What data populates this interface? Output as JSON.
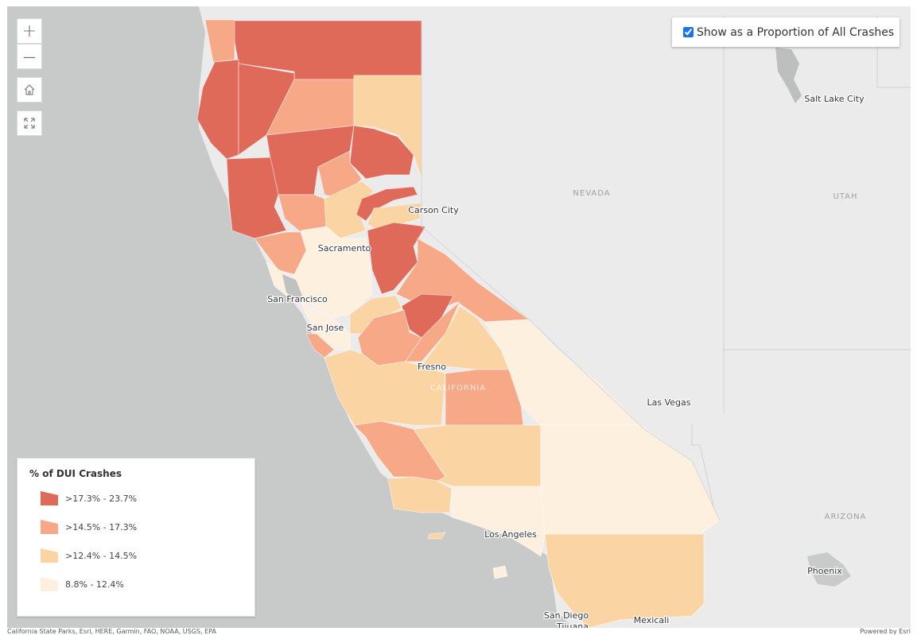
{
  "controls": {
    "zoom_in": "+",
    "zoom_out": "—",
    "home_icon": "home-icon",
    "fullscreen_icon": "fullscreen-icon"
  },
  "toggle": {
    "label": "Show as a Proportion of All Crashes",
    "checked": true
  },
  "legend": {
    "title": "% of DUI Crashes",
    "items": [
      {
        "label": ">17.3% - 23.7%",
        "color": "#e06a5a"
      },
      {
        "label": ">14.5% - 17.3%",
        "color": "#f7a886"
      },
      {
        "label": ">12.4% - 14.5%",
        "color": "#fbd4a4"
      },
      {
        "label": "8.8% - 12.4%",
        "color": "#fdf0de"
      }
    ]
  },
  "map_labels": {
    "cities": [
      "Salt Lake City",
      "Carson City",
      "Sacramento",
      "San Francisco",
      "San Jose",
      "Fresno",
      "Las Vegas",
      "Los Angeles",
      "Phoenix",
      "San Diego",
      "Tijuana",
      "Mexicali"
    ],
    "regions": [
      "NEVADA",
      "UTAH",
      "ARIZONA",
      "CALIFORNIA"
    ]
  },
  "attribution": {
    "left": "California State Parks, Esri, HERE, Garmin, FAO, NOAA, USGS, EPA",
    "right": "Powered by Esri"
  }
}
